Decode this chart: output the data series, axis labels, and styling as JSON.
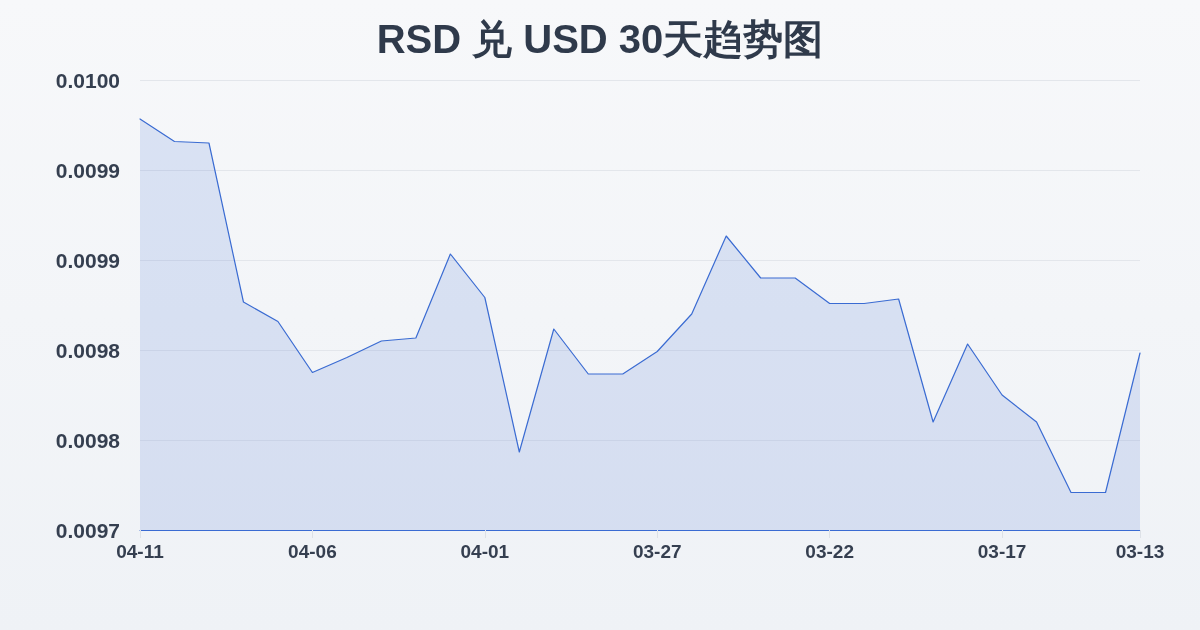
{
  "chart_data": {
    "type": "area",
    "title": "RSD 兑 USD 30天趋势图",
    "categories": [
      "04-11",
      null,
      null,
      null,
      null,
      "04-06",
      null,
      null,
      null,
      null,
      "04-01",
      null,
      null,
      null,
      null,
      "03-27",
      null,
      null,
      null,
      null,
      "03-22",
      null,
      null,
      null,
      null,
      "03-17",
      null,
      null,
      null,
      "03-13"
    ],
    "values": [
      0.009974,
      0.009959,
      0.009958,
      0.009852,
      0.009839,
      0.009805,
      0.009815,
      0.009826,
      0.009828,
      0.009884,
      0.009855,
      0.009752,
      0.009834,
      0.009804,
      0.009804,
      0.009819,
      0.009844,
      0.009896,
      0.009868,
      0.009868,
      0.009851,
      0.009851,
      0.009854,
      0.009772,
      0.009824,
      0.00979,
      0.009772,
      0.009725,
      0.009725,
      0.009818
    ],
    "color": "#3a6bd2",
    "ylim": [
      0.0097,
      0.01
    ],
    "yticks": [
      0.0097,
      {
        "value": 0.00976,
        "label": "0.0098"
      },
      {
        "value": 0.00982,
        "label": "0.0098"
      },
      {
        "value": 0.00988,
        "label": "0.0099"
      },
      {
        "value": 0.00994,
        "label": "0.0099"
      },
      {
        "value": 0.01,
        "label": "0.0100"
      }
    ],
    "grid": "y",
    "marker": "none",
    "line_style": "solid"
  }
}
